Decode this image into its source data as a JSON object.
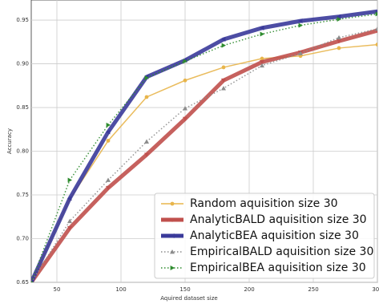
{
  "chart_data": {
    "type": "line",
    "xlabel": "Aquired dataset size",
    "ylabel": "Accuracy",
    "x": [
      30,
      60,
      90,
      120,
      150,
      180,
      210,
      240,
      270,
      300
    ],
    "xlim": [
      30,
      300
    ],
    "xticks": [
      50,
      100,
      150,
      200,
      250,
      300
    ],
    "ylim": [
      0.65,
      0.973
    ],
    "yticks": [
      0.65,
      {
        "value": 0.7,
        "label": "0.70"
      },
      0.75,
      {
        "value": 0.8,
        "label": "0.80"
      },
      0.85,
      {
        "value": 0.9,
        "label": "0.90"
      },
      0.95
    ],
    "grid": true,
    "legend": "lower right",
    "series": [
      {
        "name": "Random aquisition size 30",
        "color": "#e8b54b",
        "linewidth": 1.5,
        "linestyle": "solid",
        "marker": "circle",
        "values": [
          0.65,
          0.745,
          0.812,
          0.862,
          0.881,
          0.896,
          0.906,
          0.909,
          0.918,
          0.922
        ]
      },
      {
        "name": "AnalyticBALD aquisition size 30",
        "color": "#c0504d",
        "linewidth": 5,
        "linestyle": "solid",
        "marker": "triangle-down",
        "values": [
          0.65,
          0.712,
          0.758,
          0.796,
          0.837,
          0.881,
          0.902,
          0.913,
          0.926,
          0.938
        ]
      },
      {
        "name": "AnalyticBEA aquisition size 30",
        "color": "#3a3a9a",
        "linewidth": 5,
        "linestyle": "solid",
        "marker": "triangle-left",
        "values": [
          0.65,
          0.746,
          0.822,
          0.885,
          0.904,
          0.928,
          0.941,
          0.949,
          0.954,
          0.96
        ]
      },
      {
        "name": "EmpiricalBALD aquisition size 30",
        "color": "#8c8c8c",
        "linewidth": 1.5,
        "linestyle": "dotted",
        "marker": "triangle-up",
        "values": [
          0.65,
          0.72,
          0.767,
          0.811,
          0.849,
          0.872,
          0.898,
          0.912,
          0.93,
          0.94
        ]
      },
      {
        "name": "EmpiricalBEA aquisition size 30",
        "color": "#2e8b2e",
        "linewidth": 1.5,
        "linestyle": "dotted",
        "marker": "triangle-right",
        "values": [
          0.65,
          0.767,
          0.83,
          0.884,
          0.903,
          0.921,
          0.934,
          0.944,
          0.951,
          0.957
        ]
      }
    ]
  }
}
